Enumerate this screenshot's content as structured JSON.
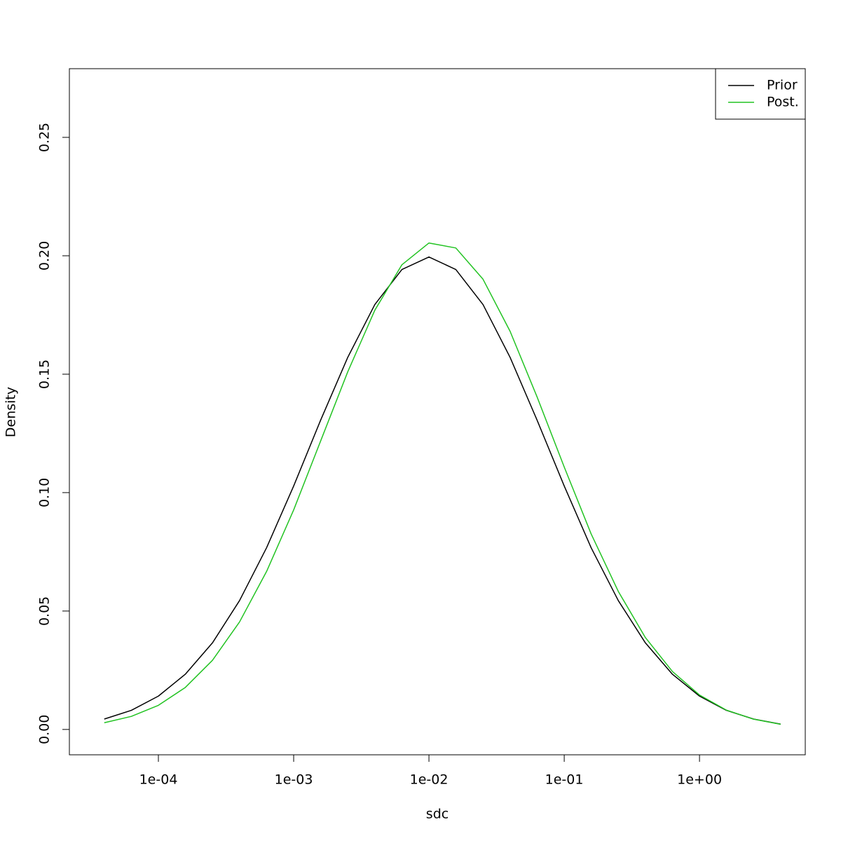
{
  "chart_data": {
    "type": "line",
    "x_label": "sdc",
    "y_label": "Density",
    "x": [
      3.98e-05,
      6.31e-05,
      0.0001,
      0.000158,
      0.000251,
      0.000398,
      0.000631,
      0.001,
      0.00158,
      0.00251,
      0.00398,
      0.00631,
      0.01,
      0.0158,
      0.0251,
      0.0398,
      0.0631,
      0.1,
      0.158,
      0.251,
      0.398,
      0.631,
      1,
      1.58,
      2.51,
      3.98
    ],
    "series": [
      {
        "name": "Prior",
        "color": "#000000",
        "values": [
          0.00439,
          0.00807,
          0.01408,
          0.0233,
          0.03656,
          0.05442,
          0.07676,
          0.1028,
          0.1305,
          0.1571,
          0.1794,
          0.1942,
          0.1995,
          0.1942,
          0.1794,
          0.1571,
          0.1305,
          0.1028,
          0.07676,
          0.05442,
          0.03656,
          0.0233,
          0.01408,
          0.00807,
          0.00439,
          0.00226
        ]
      },
      {
        "name": "Post.",
        "color": "#22c322",
        "values": [
          0.00283,
          0.00552,
          0.01019,
          0.01772,
          0.02919,
          0.0454,
          0.06675,
          0.0927,
          0.1217,
          0.151,
          0.177,
          0.1962,
          0.2054,
          0.2033,
          0.1901,
          0.1681,
          0.1403,
          0.1108,
          0.0826,
          0.0583,
          0.0388,
          0.02445,
          0.01454,
          0.00817,
          0.00434,
          0.00218
        ]
      }
    ],
    "x_log": true,
    "xlim": [
      2.198e-05,
      6.05
    ],
    "ylim": [
      -0.0107,
      0.279
    ],
    "xticks": [
      {
        "value": 0.0001,
        "label": "1e-04"
      },
      {
        "value": 0.001,
        "label": "1e-03"
      },
      {
        "value": 0.01,
        "label": "1e-02"
      },
      {
        "value": 0.1,
        "label": "1e-01"
      },
      {
        "value": 1,
        "label": "1e+00"
      }
    ],
    "yticks": [
      {
        "value": 0,
        "label": "0.00"
      },
      {
        "value": 0.05,
        "label": "0.05"
      },
      {
        "value": 0.1,
        "label": "0.10"
      },
      {
        "value": 0.15,
        "label": "0.15"
      },
      {
        "value": 0.2,
        "label": "0.20"
      },
      {
        "value": 0.25,
        "label": "0.25"
      }
    ],
    "legend": "top-right"
  }
}
